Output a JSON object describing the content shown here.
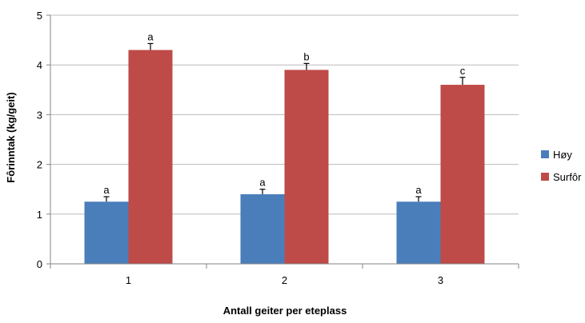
{
  "chart_data": {
    "type": "bar",
    "xlabel": "Antall geiter per eteplass",
    "ylabel": "Fôrinntak (kg/geit)",
    "categories": [
      "1",
      "2",
      "3"
    ],
    "ylim": [
      0,
      5
    ],
    "yticks": [
      "0",
      "1",
      "2",
      "3",
      "4",
      "5"
    ],
    "grid": true,
    "legend_position": "right",
    "series": [
      {
        "name": "Høy",
        "color": "#4a7ebb",
        "values": [
          1.25,
          1.4,
          1.25
        ],
        "errors": [
          0.1,
          0.1,
          0.1
        ],
        "labels": [
          "a",
          "a",
          "a"
        ]
      },
      {
        "name": "Surfôr",
        "color": "#be4b48",
        "values": [
          4.3,
          3.9,
          3.6
        ],
        "errors": [
          0.13,
          0.13,
          0.15
        ],
        "labels": [
          "a",
          "b",
          "c"
        ]
      }
    ]
  }
}
